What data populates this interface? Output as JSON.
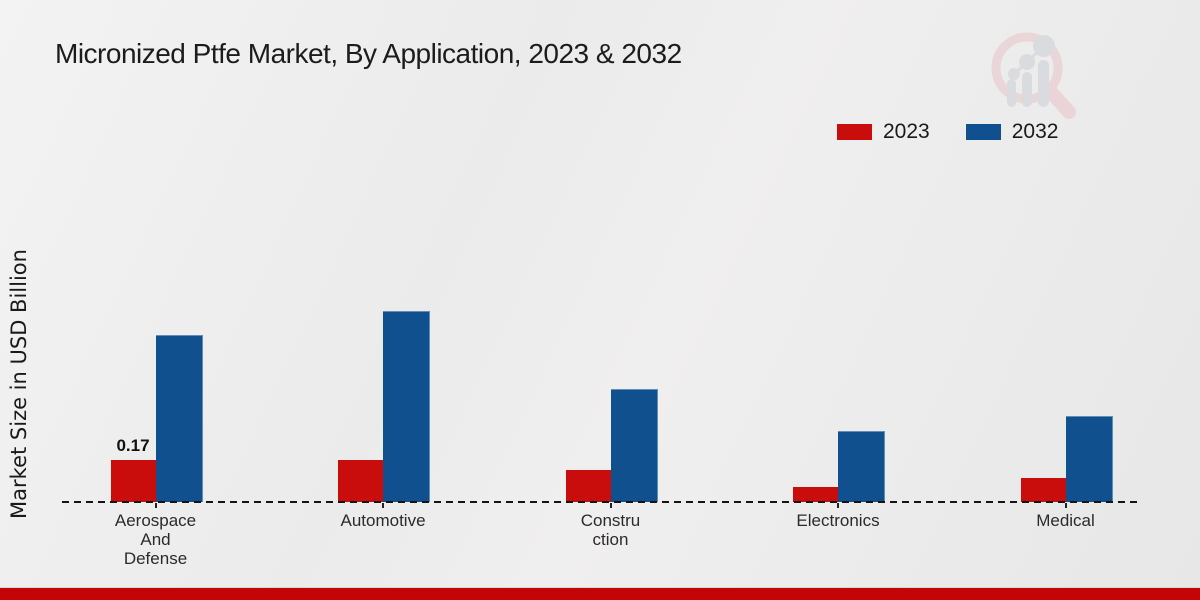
{
  "page": {
    "title": "Micronized Ptfe Market, By Application, 2023 & 2032",
    "ylabel": "Market Size in USD Billion",
    "footer_color": "#c20607"
  },
  "legend": {
    "items": [
      {
        "label": "2023",
        "color": "#c90d0d"
      },
      {
        "label": "2032",
        "color": "#11508f"
      }
    ]
  },
  "watermark": {
    "icon": "magnifier-bar-chart-logo",
    "ring_color": "#e9c3c8",
    "bars_color": "#ccced3"
  },
  "chart_data": {
    "type": "bar",
    "title": "Micronized Ptfe Market, By Application, 2023 & 2032",
    "xlabel": "",
    "ylabel": "Market Size in USD Billion",
    "categories": [
      "Aerospace And Defense",
      "Automotive",
      "Construction",
      "Electronics",
      "Medical"
    ],
    "category_display_lines": [
      [
        "Aerospace",
        "And",
        "Defense"
      ],
      [
        "Automotive"
      ],
      [
        "Constru",
        "ction"
      ],
      [
        "Electronics"
      ],
      [
        "Medical"
      ]
    ],
    "series": [
      {
        "name": "2023",
        "color": "#c90d0d",
        "values": [
          0.17,
          0.17,
          0.13,
          0.06,
          0.1
        ],
        "value_labels": [
          "0.17",
          "",
          "",
          "",
          ""
        ]
      },
      {
        "name": "2032",
        "color": "#11508f",
        "values": [
          0.68,
          0.78,
          0.46,
          0.29,
          0.35
        ],
        "value_labels": [
          "",
          "",
          "",
          "",
          ""
        ]
      }
    ],
    "ylim": [
      0,
      0.85
    ],
    "grid": false,
    "axis_style": "dashed-baseline-only",
    "legend_position": "top-right"
  }
}
